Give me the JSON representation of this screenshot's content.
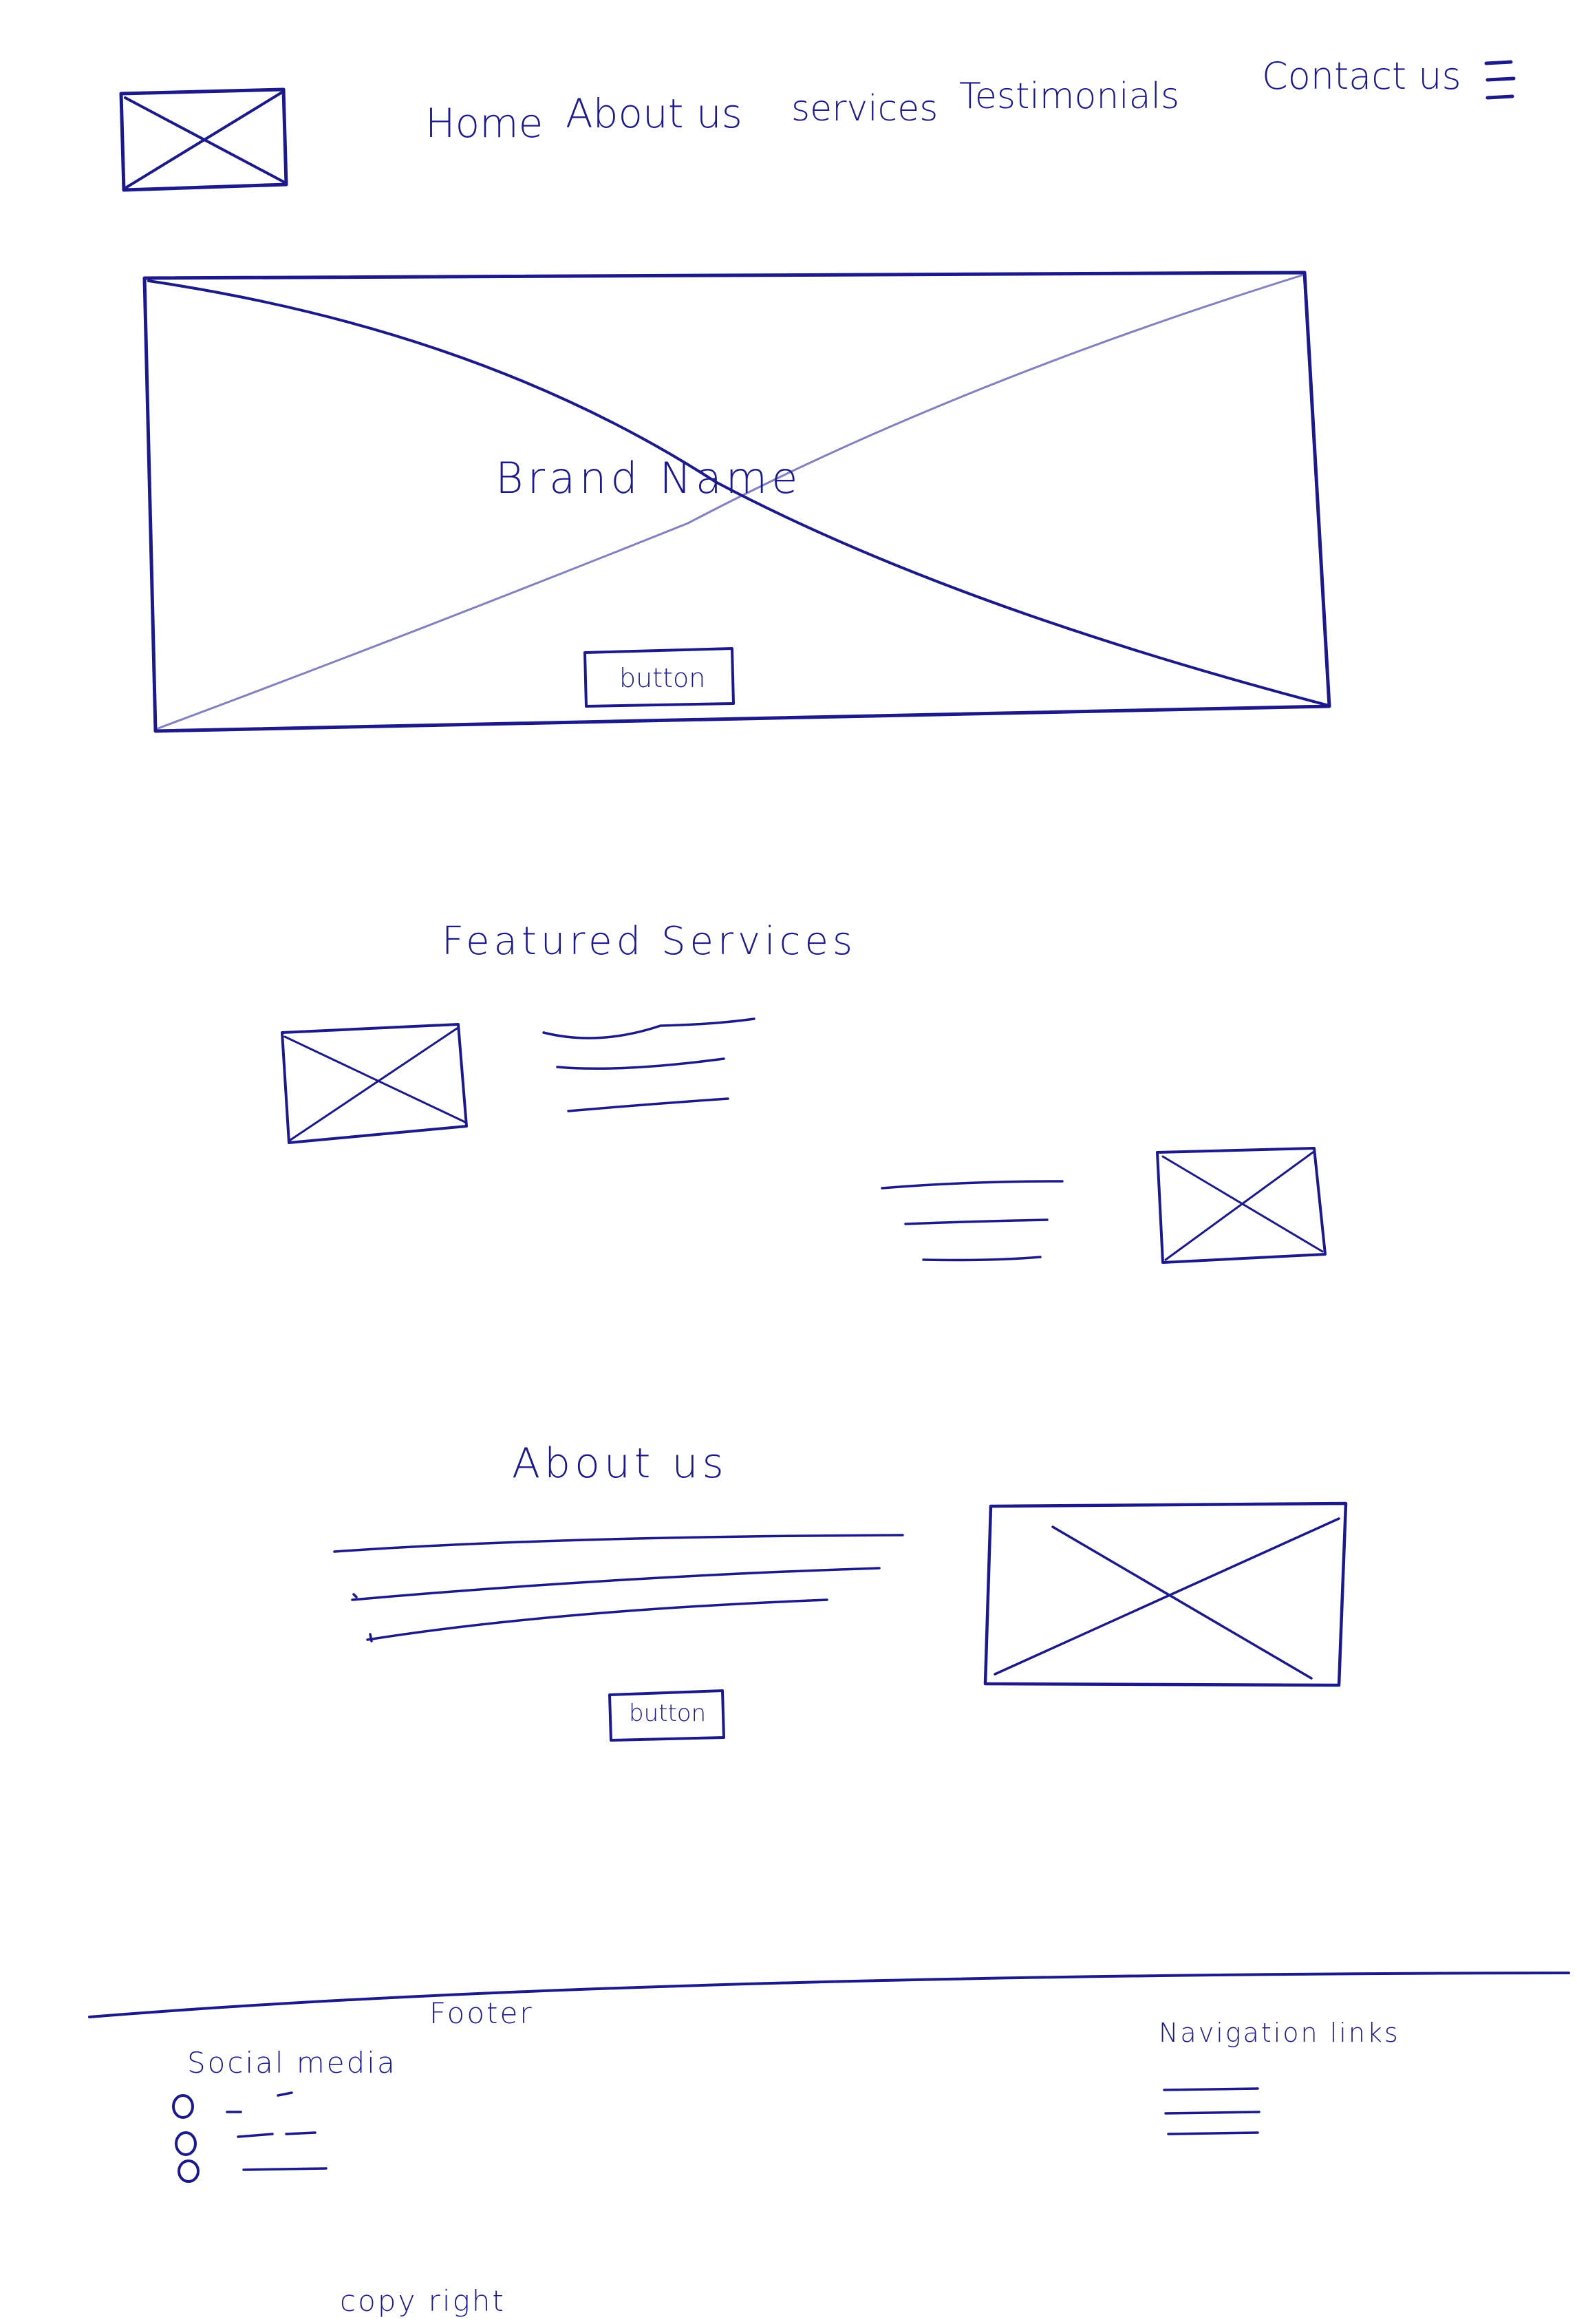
{
  "nav": {
    "items": [
      "Home",
      "About us",
      "services",
      "Testimonials",
      "Contact us"
    ]
  },
  "hero": {
    "brand": "Brand Name",
    "button": "button"
  },
  "featured": {
    "heading": "Featured Services"
  },
  "about": {
    "heading": "About us",
    "button": "button"
  },
  "footer": {
    "label": "Footer",
    "social_heading": "Social media",
    "nav_heading": "Navigation links",
    "copyright": "copy right"
  },
  "colors": {
    "ink": "#1c1a8a",
    "paper": "#ffffff"
  }
}
